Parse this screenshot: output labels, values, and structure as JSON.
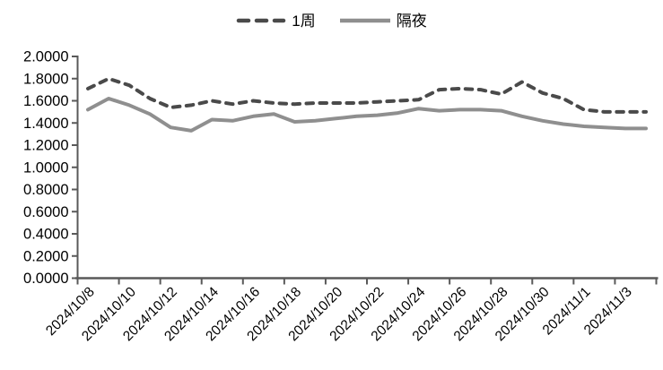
{
  "page": {
    "background": "#ffffff"
  },
  "legend": {
    "items": [
      {
        "label": "1周",
        "style": "dashed",
        "color": "#4a4a4a"
      },
      {
        "label": "隔夜",
        "style": "solid",
        "color": "#8f8f8f"
      }
    ]
  },
  "chart_data": {
    "type": "line",
    "title": "",
    "xlabel": "",
    "ylabel": "",
    "categories": [
      "2024/10/8",
      "2024/10/9",
      "2024/10/10",
      "2024/10/11",
      "2024/10/12",
      "2024/10/13",
      "2024/10/14",
      "2024/10/15",
      "2024/10/16",
      "2024/10/17",
      "2024/10/18",
      "2024/10/19",
      "2024/10/20",
      "2024/10/21",
      "2024/10/22",
      "2024/10/23",
      "2024/10/24",
      "2024/10/25",
      "2024/10/26",
      "2024/10/27",
      "2024/10/28",
      "2024/10/29",
      "2024/10/30",
      "2024/10/31",
      "2024/11/1",
      "2024/11/2",
      "2024/11/3",
      "2024/11/4"
    ],
    "series": [
      {
        "name": "1周",
        "style": "dashed",
        "color": "#4a4a4a",
        "values": [
          1.71,
          1.8,
          1.74,
          1.62,
          1.54,
          1.56,
          1.6,
          1.57,
          1.6,
          1.58,
          1.57,
          1.58,
          1.58,
          1.58,
          1.59,
          1.6,
          1.61,
          1.7,
          1.71,
          1.7,
          1.66,
          1.77,
          1.67,
          1.62,
          1.52,
          1.5,
          1.5,
          1.5
        ]
      },
      {
        "name": "隔夜",
        "style": "solid",
        "color": "#8f8f8f",
        "values": [
          1.52,
          1.62,
          1.56,
          1.48,
          1.36,
          1.33,
          1.43,
          1.42,
          1.46,
          1.48,
          1.41,
          1.42,
          1.44,
          1.46,
          1.47,
          1.49,
          1.53,
          1.51,
          1.52,
          1.52,
          1.51,
          1.46,
          1.42,
          1.39,
          1.37,
          1.36,
          1.35,
          1.35
        ]
      }
    ],
    "ylim": [
      0,
      2
    ],
    "y_tick_step": 0.2,
    "y_tick_labels": [
      "0.0000",
      "0.2000",
      "0.4000",
      "0.6000",
      "0.8000",
      "1.0000",
      "1.2000",
      "1.4000",
      "1.6000",
      "1.8000",
      "2.0000"
    ],
    "x_tick_labels": [
      "2024/10/8",
      "2024/10/10",
      "2024/10/12",
      "2024/10/14",
      "2024/10/16",
      "2024/10/18",
      "2024/10/20",
      "2024/10/22",
      "2024/10/24",
      "2024/10/26",
      "2024/10/28",
      "2024/10/30",
      "2024/11/1",
      "2024/11/3"
    ],
    "x_label_every": 2,
    "x_label_rotation": -45,
    "grid": false,
    "legend_position": "top-center",
    "axis_color": "#595959",
    "text_color": "#000000"
  }
}
